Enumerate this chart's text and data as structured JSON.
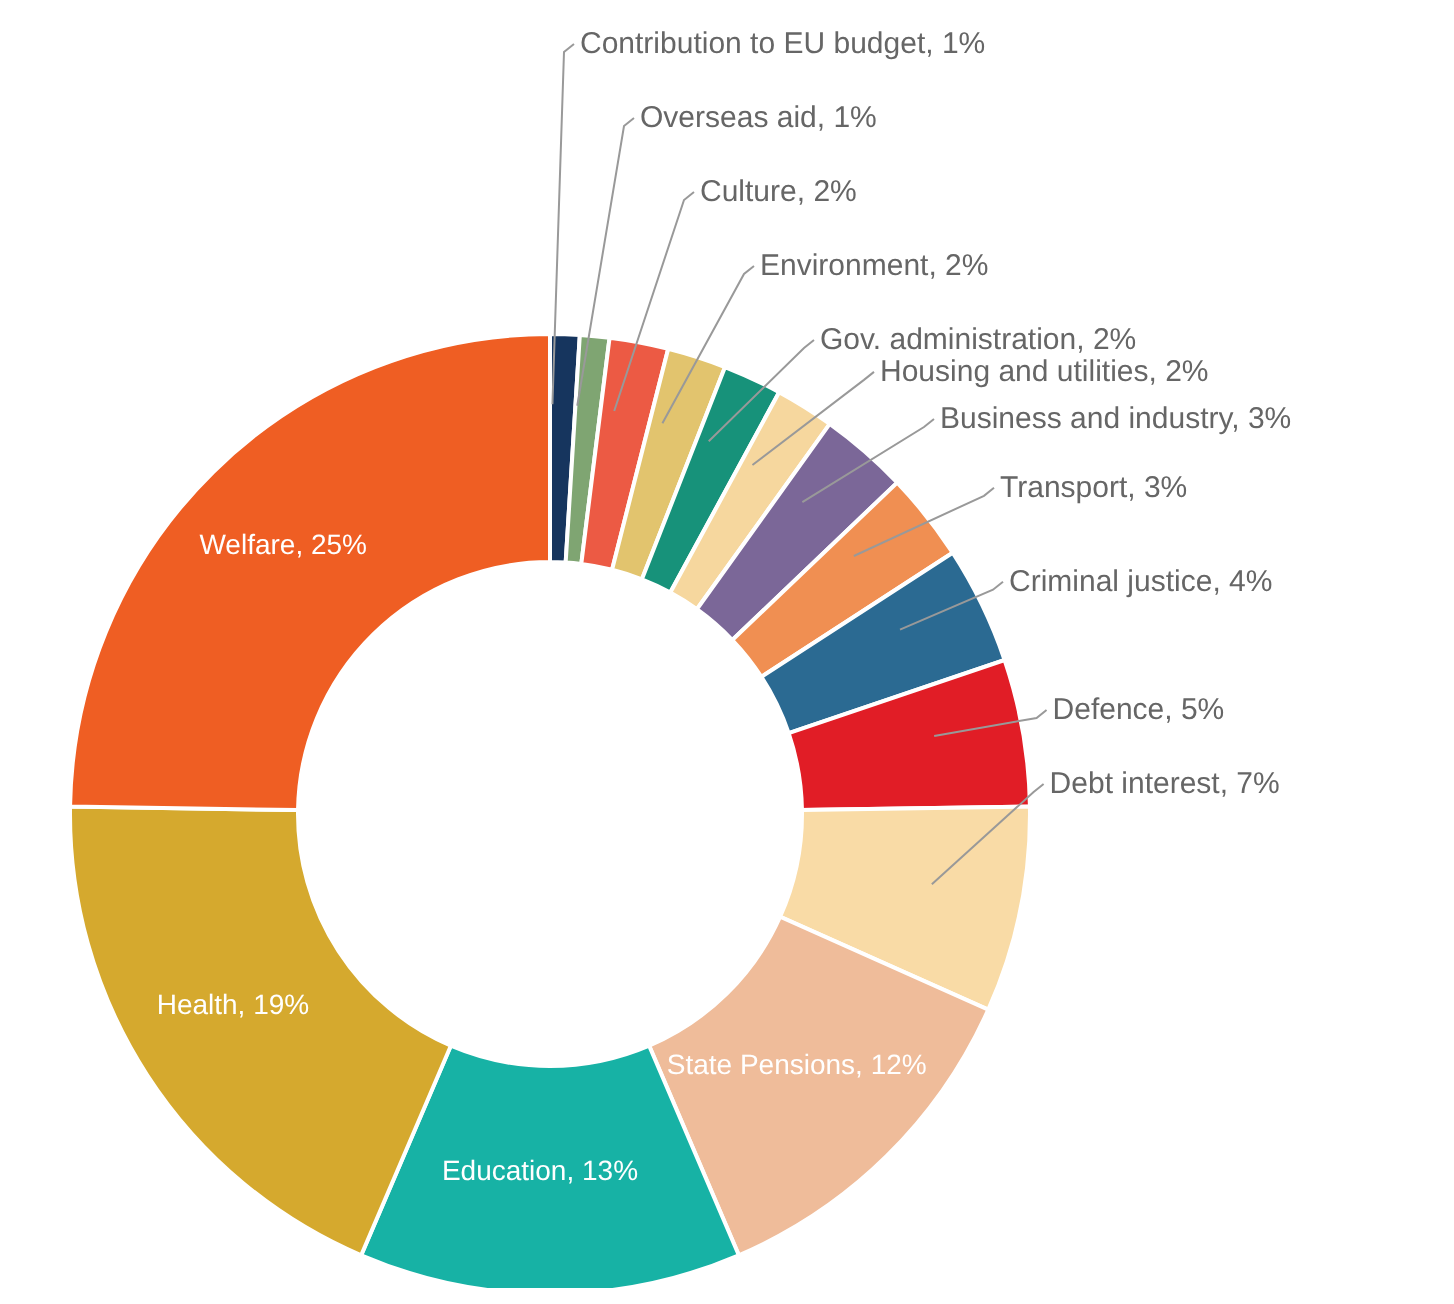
{
  "chart_data": {
    "type": "donut",
    "categories": [
      "Contribution to EU budget",
      "Overseas aid",
      "Culture",
      "Environment",
      "Gov. administration",
      "Housing and utilities",
      "Business and industry",
      "Transport",
      "Criminal justice",
      "Defence",
      "Debt interest",
      "State Pensions",
      "Education",
      "Health",
      "Welfare"
    ],
    "values": [
      1,
      1,
      2,
      2,
      2,
      2,
      3,
      3,
      4,
      5,
      7,
      12,
      13,
      19,
      25
    ],
    "value_labels": [
      "1%",
      "1%",
      "2%",
      "2%",
      "2%",
      "2%",
      "3%",
      "3%",
      "4%",
      "5%",
      "7%",
      "12%",
      "13%",
      "19%",
      "25%"
    ],
    "colors": [
      "#16355e",
      "#7fa572",
      "#ec5a44",
      "#e2c46e",
      "#17927a",
      "#f6d79e",
      "#7b6798",
      "#f08f52",
      "#2b6a92",
      "#e11d26",
      "#f9dba6",
      "#efbc9a",
      "#17b2a5",
      "#d5a92e",
      "#ef5e23"
    ],
    "legend": false
  }
}
